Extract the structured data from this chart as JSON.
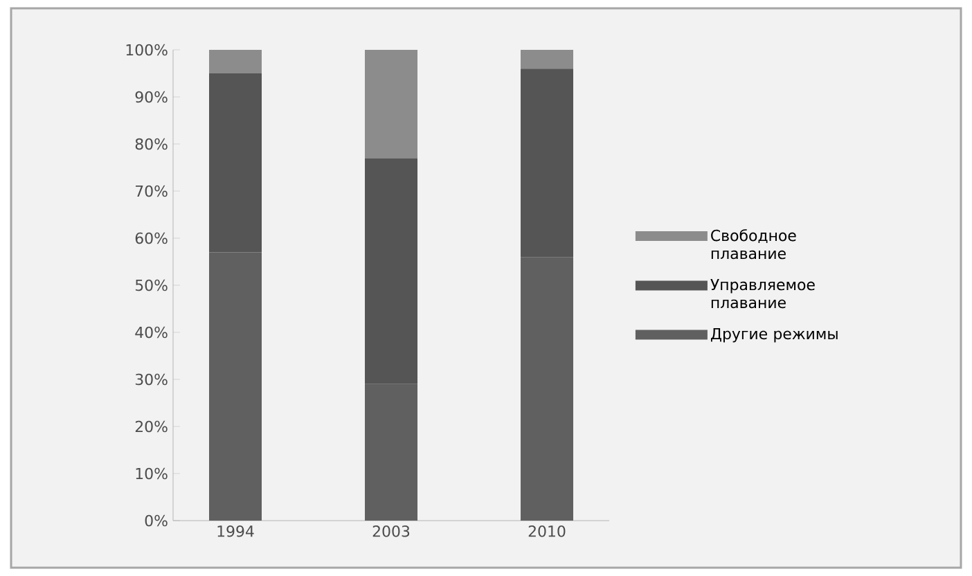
{
  "chart_data": {
    "type": "bar",
    "stacked": true,
    "categories": [
      "1994",
      "2003",
      "2010"
    ],
    "series": [
      {
        "name": "Другие режимы",
        "color": "#606060",
        "values": [
          57,
          29,
          56
        ]
      },
      {
        "name": "Управляемое плавание",
        "color": "#555555",
        "values": [
          38,
          48,
          40
        ]
      },
      {
        "name": "Свободное плавание",
        "color": "#8c8c8c",
        "values": [
          5,
          23,
          4
        ]
      }
    ],
    "ylim": [
      0,
      100
    ],
    "yticks": [
      {
        "value": 0,
        "label": "0%"
      },
      {
        "value": 10,
        "label": "10%"
      },
      {
        "value": 20,
        "label": "20%"
      },
      {
        "value": 30,
        "label": "30%"
      },
      {
        "value": 40,
        "label": "40%"
      },
      {
        "value": 50,
        "label": "50%"
      },
      {
        "value": 60,
        "label": "60%"
      },
      {
        "value": 70,
        "label": "70%"
      },
      {
        "value": 80,
        "label": "80%"
      },
      {
        "value": 90,
        "label": "90%"
      },
      {
        "value": 100,
        "label": "100%"
      }
    ],
    "grid": false,
    "legend": "right"
  }
}
